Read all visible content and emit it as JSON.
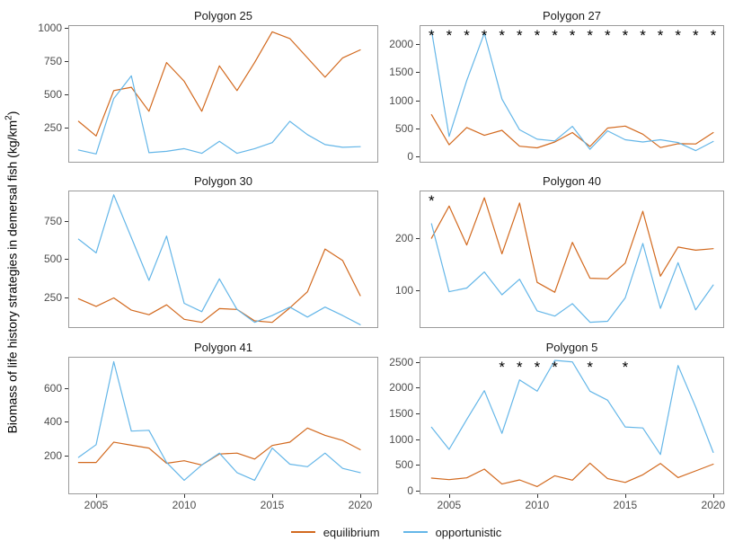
{
  "figure": {
    "y_axis_title": {
      "full": "Biomass of life history strategies in demersal fish (kg/km²)",
      "main": "Biomass of life history strategies in demersal fish (kg/km",
      "sup": "2",
      "close": ")"
    },
    "colors": {
      "equilibrium": "#d2691e",
      "opportunistic": "#64b6e8",
      "panel_border": "#9b9b9b",
      "tick_mark": "#333333",
      "tick_label": "#4d4d4d",
      "asterisk": "#000000",
      "background": "#ffffff"
    },
    "legend": [
      {
        "label": "equilibrium"
      },
      {
        "label": "opportunistic"
      }
    ]
  },
  "chart_data": [
    {
      "type": "line",
      "title": "Polygon 25",
      "x": [
        2004,
        2005,
        2006,
        2007,
        2008,
        2009,
        2010,
        2011,
        2012,
        2013,
        2014,
        2015,
        2016,
        2017,
        2018,
        2019,
        2020
      ],
      "series": [
        {
          "name": "equilibrium",
          "values": [
            300,
            190,
            530,
            555,
            375,
            740,
            600,
            375,
            715,
            530,
            740,
            970,
            920,
            775,
            630,
            775,
            835
          ]
        },
        {
          "name": "opportunistic",
          "values": [
            85,
            55,
            470,
            640,
            65,
            75,
            95,
            60,
            150,
            60,
            95,
            140,
            300,
            200,
            125,
            105,
            110
          ]
        }
      ],
      "yticks": [
        250,
        500,
        750,
        1000
      ],
      "ylim": [
        -10,
        1020
      ],
      "xticks": [
        2005,
        2010,
        2015,
        2020
      ],
      "xlim": [
        2003.42,
        2021.02
      ],
      "show_x_labels": false,
      "significant_years": []
    },
    {
      "type": "line",
      "title": "Polygon 27",
      "x": [
        2004,
        2005,
        2006,
        2007,
        2008,
        2009,
        2010,
        2011,
        2012,
        2013,
        2014,
        2015,
        2016,
        2017,
        2018,
        2019,
        2020
      ],
      "series": [
        {
          "name": "equilibrium",
          "values": [
            740,
            200,
            510,
            370,
            460,
            175,
            145,
            250,
            420,
            170,
            500,
            535,
            390,
            150,
            220,
            215,
            420
          ]
        },
        {
          "name": "opportunistic",
          "values": [
            2250,
            350,
            1350,
            2200,
            1020,
            470,
            300,
            270,
            530,
            120,
            450,
            290,
            250,
            290,
            240,
            95,
            260
          ]
        }
      ],
      "yticks": [
        0,
        500,
        1000,
        1500,
        2000
      ],
      "ylim": [
        -120,
        2344
      ],
      "xticks": [
        2005,
        2010,
        2015,
        2020
      ],
      "xlim": [
        2003.32,
        2020.62
      ],
      "show_x_labels": false,
      "significant_years": [
        2004,
        2005,
        2006,
        2007,
        2008,
        2009,
        2010,
        2011,
        2012,
        2013,
        2014,
        2015,
        2016,
        2017,
        2018,
        2019,
        2020
      ]
    },
    {
      "type": "line",
      "title": "Polygon 30",
      "x": [
        2004,
        2005,
        2006,
        2007,
        2008,
        2009,
        2010,
        2011,
        2012,
        2013,
        2014,
        2015,
        2016,
        2017,
        2018,
        2019,
        2020
      ],
      "series": [
        {
          "name": "equilibrium",
          "values": [
            240,
            190,
            245,
            165,
            135,
            200,
            105,
            85,
            175,
            170,
            95,
            85,
            180,
            285,
            565,
            490,
            260
          ]
        },
        {
          "name": "opportunistic",
          "values": [
            630,
            540,
            920,
            640,
            360,
            650,
            210,
            155,
            370,
            170,
            85,
            130,
            185,
            120,
            185,
            130,
            70
          ]
        }
      ],
      "yticks": [
        250,
        500,
        750
      ],
      "ylim": [
        48,
        948
      ],
      "xticks": [
        2005,
        2010,
        2015,
        2020
      ],
      "xlim": [
        2003.42,
        2021.02
      ],
      "show_x_labels": false,
      "significant_years": []
    },
    {
      "type": "line",
      "title": "Polygon 40",
      "x": [
        2004,
        2005,
        2006,
        2007,
        2008,
        2009,
        2010,
        2011,
        2012,
        2013,
        2014,
        2015,
        2016,
        2017,
        2018,
        2019,
        2020
      ],
      "series": [
        {
          "name": "equilibrium",
          "values": [
            200,
            262,
            187,
            278,
            170,
            268,
            115,
            96,
            192,
            123,
            122,
            152,
            252,
            127,
            183,
            177,
            180
          ]
        },
        {
          "name": "opportunistic",
          "values": [
            228,
            97,
            104,
            135,
            91,
            121,
            60,
            50,
            74,
            38,
            40,
            85,
            190,
            65,
            153,
            62,
            110
          ]
        }
      ],
      "yticks": [
        100,
        200
      ],
      "ylim": [
        27,
        292
      ],
      "xticks": [
        2005,
        2010,
        2015,
        2020
      ],
      "xlim": [
        2003.32,
        2020.62
      ],
      "show_x_labels": false,
      "significant_years": [
        2004
      ]
    },
    {
      "type": "line",
      "title": "Polygon 41",
      "x": [
        2004,
        2005,
        2006,
        2007,
        2008,
        2009,
        2010,
        2011,
        2012,
        2013,
        2014,
        2015,
        2016,
        2017,
        2018,
        2019,
        2020
      ],
      "series": [
        {
          "name": "equilibrium",
          "values": [
            160,
            160,
            280,
            262,
            245,
            155,
            170,
            145,
            210,
            215,
            180,
            260,
            280,
            363,
            320,
            290,
            235
          ]
        },
        {
          "name": "opportunistic",
          "values": [
            190,
            265,
            755,
            345,
            350,
            160,
            55,
            145,
            215,
            100,
            55,
            245,
            150,
            135,
            215,
            125,
            100
          ]
        }
      ],
      "yticks": [
        200,
        400,
        600
      ],
      "ylim": [
        -28,
        784
      ],
      "xticks": [
        2005,
        2010,
        2015,
        2020
      ],
      "xlim": [
        2003.42,
        2021.02
      ],
      "show_x_labels": true,
      "significant_years": []
    },
    {
      "type": "line",
      "title": "Polygon 5",
      "x": [
        2004,
        2005,
        2006,
        2007,
        2008,
        2009,
        2010,
        2011,
        2012,
        2013,
        2014,
        2015,
        2016,
        2017,
        2018,
        2019,
        2020
      ],
      "series": [
        {
          "name": "equilibrium",
          "values": [
            240,
            210,
            245,
            415,
            125,
            205,
            75,
            285,
            200,
            530,
            230,
            155,
            305,
            525,
            250,
            380,
            510
          ]
        },
        {
          "name": "opportunistic",
          "values": [
            1230,
            800,
            1380,
            1940,
            1110,
            2150,
            1930,
            2530,
            2500,
            1930,
            1755,
            1235,
            1215,
            700,
            2430,
            1625,
            740
          ]
        }
      ],
      "yticks": [
        0,
        500,
        1000,
        1500,
        2000,
        2500
      ],
      "ylim": [
        -75,
        2600
      ],
      "xticks": [
        2005,
        2010,
        2015,
        2020
      ],
      "xlim": [
        2003.32,
        2020.62
      ],
      "show_x_labels": true,
      "significant_years": [
        2008,
        2009,
        2010,
        2011,
        2013,
        2015
      ]
    }
  ]
}
